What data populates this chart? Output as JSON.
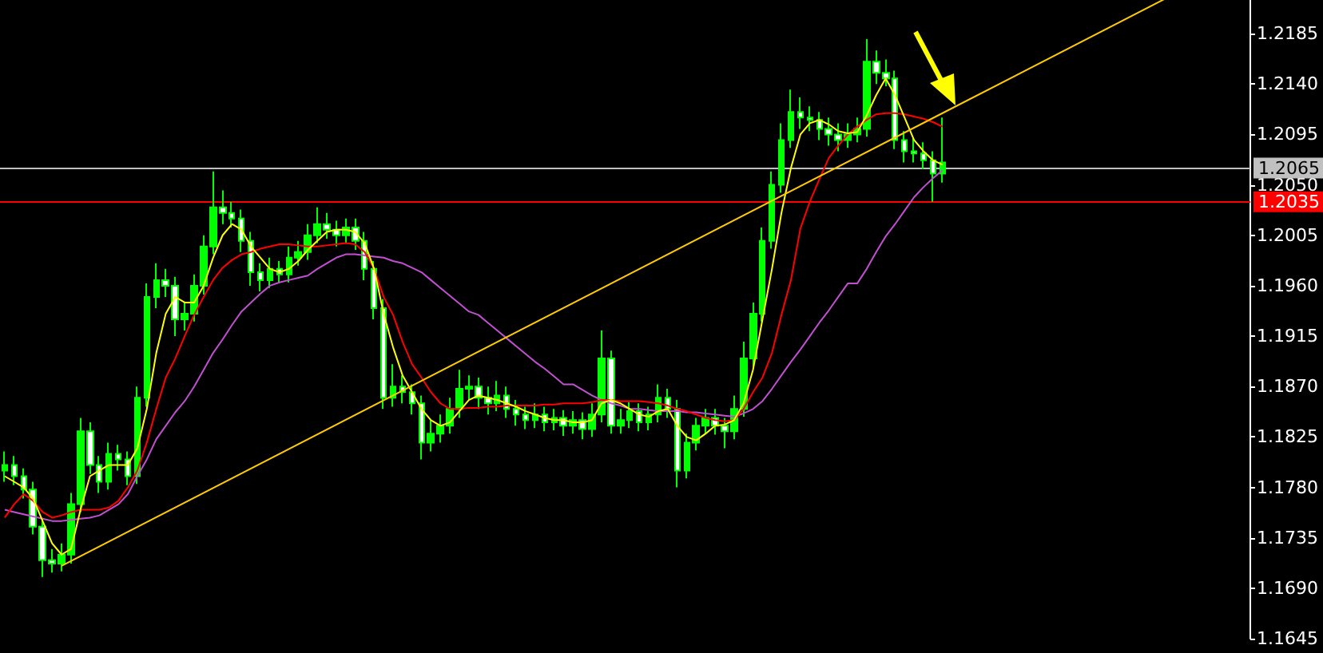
{
  "chart_data": {
    "type": "candlestick",
    "color": "#00ff00",
    "categories": [
      null,
      null,
      null,
      null,
      null,
      null,
      null,
      null,
      null,
      null,
      null,
      null,
      null,
      null,
      null,
      null,
      null,
      null,
      null,
      null,
      null,
      null,
      null,
      null,
      null,
      null,
      null,
      null,
      null,
      null,
      null,
      null,
      null,
      null,
      null,
      null,
      null,
      null,
      null,
      null,
      null,
      null,
      null,
      null,
      null,
      null,
      null,
      null,
      null,
      null,
      null,
      null,
      null,
      null,
      null,
      null,
      null,
      null,
      null,
      null,
      null,
      null,
      null,
      null,
      null,
      null,
      null,
      null,
      null,
      null,
      null,
      null,
      null,
      null,
      null,
      null,
      null,
      null,
      null,
      null,
      null,
      null,
      null,
      null,
      null,
      null,
      null,
      null,
      null,
      null,
      null,
      null,
      null,
      null,
      null,
      null,
      null,
      null,
      null,
      null
    ],
    "ohlc": [
      [
        1.1795,
        1.1812,
        1.1785,
        1.18
      ],
      [
        1.18,
        1.1808,
        1.1782,
        1.179
      ],
      [
        1.179,
        1.1797,
        1.177,
        1.1778
      ],
      [
        1.1778,
        1.1785,
        1.1738,
        1.1745
      ],
      [
        1.1745,
        1.1752,
        1.17,
        1.1715
      ],
      [
        1.1715,
        1.1725,
        1.1704,
        1.1712
      ],
      [
        1.1712,
        1.173,
        1.1705,
        1.172
      ],
      [
        1.172,
        1.1775,
        1.1712,
        1.1765
      ],
      [
        1.1765,
        1.1842,
        1.1758,
        1.183
      ],
      [
        1.183,
        1.1838,
        1.1792,
        1.18
      ],
      [
        1.18,
        1.1808,
        1.1775,
        1.1785
      ],
      [
        1.1785,
        1.182,
        1.1778,
        1.181
      ],
      [
        1.181,
        1.1818,
        1.1795,
        1.1805
      ],
      [
        1.1805,
        1.1812,
        1.1782,
        1.179
      ],
      [
        1.179,
        1.187,
        1.1783,
        1.186
      ],
      [
        1.186,
        1.1962,
        1.1852,
        1.195
      ],
      [
        1.195,
        1.198,
        1.194,
        1.1965
      ],
      [
        1.1965,
        1.1975,
        1.195,
        1.196
      ],
      [
        1.196,
        1.1968,
        1.1915,
        1.193
      ],
      [
        1.193,
        1.1945,
        1.192,
        1.1935
      ],
      [
        1.1935,
        1.197,
        1.1928,
        1.196
      ],
      [
        1.196,
        1.2005,
        1.1952,
        1.1995
      ],
      [
        1.1995,
        1.2062,
        1.1988,
        1.203
      ],
      [
        1.203,
        1.2045,
        1.2015,
        1.2025
      ],
      [
        1.2025,
        1.2035,
        1.2012,
        1.202
      ],
      [
        1.202,
        1.2028,
        1.199,
        1.2
      ],
      [
        1.2,
        1.2008,
        1.196,
        1.1972
      ],
      [
        1.1972,
        1.198,
        1.1955,
        1.1965
      ],
      [
        1.1965,
        1.1985,
        1.1958,
        1.1975
      ],
      [
        1.1975,
        1.1982,
        1.1962,
        1.197
      ],
      [
        1.197,
        1.1995,
        1.1963,
        1.1985
      ],
      [
        1.1985,
        1.2,
        1.1978,
        1.199
      ],
      [
        1.199,
        1.2015,
        1.1983,
        1.2005
      ],
      [
        1.2005,
        1.203,
        1.1998,
        1.2015
      ],
      [
        1.2015,
        1.2025,
        1.2002,
        1.201
      ],
      [
        1.201,
        1.2018,
        1.1995,
        1.2005
      ],
      [
        1.2005,
        1.202,
        1.1998,
        1.2012
      ],
      [
        1.2012,
        1.202,
        1.1992,
        1.2
      ],
      [
        1.2,
        1.2008,
        1.1965,
        1.1975
      ],
      [
        1.1975,
        1.1982,
        1.193,
        1.194
      ],
      [
        1.194,
        1.1948,
        1.185,
        1.186
      ],
      [
        1.186,
        1.189,
        1.1852,
        1.187
      ],
      [
        1.187,
        1.188,
        1.1855,
        1.1865
      ],
      [
        1.1865,
        1.1872,
        1.1845,
        1.1855
      ],
      [
        1.1855,
        1.1862,
        1.1805,
        1.182
      ],
      [
        1.182,
        1.184,
        1.1812,
        1.1828
      ],
      [
        1.1828,
        1.1845,
        1.182,
        1.1835
      ],
      [
        1.1835,
        1.186,
        1.1828,
        1.185
      ],
      [
        1.185,
        1.1885,
        1.1842,
        1.1868
      ],
      [
        1.1868,
        1.188,
        1.1858,
        1.187
      ],
      [
        1.187,
        1.1878,
        1.185,
        1.186
      ],
      [
        1.186,
        1.187,
        1.1845,
        1.1855
      ],
      [
        1.1855,
        1.1875,
        1.1848,
        1.1862
      ],
      [
        1.1862,
        1.187,
        1.1842,
        1.185
      ],
      [
        1.185,
        1.1858,
        1.1835,
        1.1845
      ],
      [
        1.1845,
        1.1852,
        1.1832,
        1.184
      ],
      [
        1.184,
        1.1855,
        1.1833,
        1.1845
      ],
      [
        1.1845,
        1.1852,
        1.183,
        1.1838
      ],
      [
        1.1838,
        1.185,
        1.1831,
        1.1842
      ],
      [
        1.1842,
        1.1849,
        1.1826,
        1.1835
      ],
      [
        1.1835,
        1.1848,
        1.1828,
        1.184
      ],
      [
        1.184,
        1.1847,
        1.1823,
        1.1832
      ],
      [
        1.1832,
        1.1855,
        1.1825,
        1.1845
      ],
      [
        1.1845,
        1.192,
        1.1838,
        1.1895
      ],
      [
        1.1895,
        1.1902,
        1.1828,
        1.1835
      ],
      [
        1.1835,
        1.185,
        1.1828,
        1.184
      ],
      [
        1.184,
        1.1856,
        1.1833,
        1.1848
      ],
      [
        1.1848,
        1.1855,
        1.183,
        1.1838
      ],
      [
        1.1838,
        1.1852,
        1.1831,
        1.1845
      ],
      [
        1.1845,
        1.1872,
        1.1838,
        1.186
      ],
      [
        1.186,
        1.1868,
        1.1842,
        1.185
      ],
      [
        1.185,
        1.1858,
        1.178,
        1.1795
      ],
      [
        1.1795,
        1.1828,
        1.1788,
        1.182
      ],
      [
        1.182,
        1.1842,
        1.1813,
        1.1835
      ],
      [
        1.1835,
        1.185,
        1.1828,
        1.1842
      ],
      [
        1.1842,
        1.185,
        1.1827,
        1.1835
      ],
      [
        1.1835,
        1.1842,
        1.1815,
        1.183
      ],
      [
        1.183,
        1.1862,
        1.1823,
        1.185
      ],
      [
        1.185,
        1.191,
        1.1843,
        1.1895
      ],
      [
        1.1895,
        1.1945,
        1.1888,
        1.1935
      ],
      [
        1.1935,
        1.2012,
        1.1928,
        1.2
      ],
      [
        1.2,
        1.2062,
        1.1993,
        1.205
      ],
      [
        1.205,
        1.2105,
        1.2043,
        1.209
      ],
      [
        1.209,
        1.2135,
        1.2083,
        1.2115
      ],
      [
        1.2115,
        1.2128,
        1.21,
        1.211
      ],
      [
        1.211,
        1.212,
        1.2098,
        1.2108
      ],
      [
        1.2108,
        1.2115,
        1.209,
        1.21
      ],
      [
        1.21,
        1.211,
        1.2085,
        1.2095
      ],
      [
        1.2095,
        1.2105,
        1.208,
        1.209
      ],
      [
        1.209,
        1.2105,
        1.2083,
        1.2095
      ],
      [
        1.2095,
        1.211,
        1.2088,
        1.21
      ],
      [
        1.21,
        1.218,
        1.2093,
        1.216
      ],
      [
        1.216,
        1.217,
        1.214,
        1.215
      ],
      [
        1.215,
        1.2162,
        1.2138,
        1.2145
      ],
      [
        1.2145,
        1.2152,
        1.2082,
        1.209
      ],
      [
        1.209,
        1.2098,
        1.207,
        1.208
      ],
      [
        1.208,
        1.2092,
        1.207,
        1.2078
      ],
      [
        1.2078,
        1.2088,
        1.2064,
        1.2072
      ],
      [
        1.2072,
        1.208,
        1.2035,
        1.206
      ],
      [
        1.206,
        1.211,
        1.2052,
        1.207
      ]
    ],
    "series": [
      {
        "type": "line",
        "color": "#c050d0",
        "values": [
          1.176,
          1.1758,
          1.1756,
          1.1754,
          1.1752,
          1.175,
          1.175,
          1.1751,
          1.1752,
          1.1753,
          1.1755,
          1.176,
          1.1765,
          1.1774,
          1.179,
          1.1805,
          1.1823,
          1.1835,
          1.1847,
          1.1857,
          1.187,
          1.1885,
          1.19,
          1.1912,
          1.1925,
          1.1937,
          1.1945,
          1.1953,
          1.196,
          1.1963,
          1.1965,
          1.1967,
          1.1969,
          1.1975,
          1.198,
          1.1985,
          1.1988,
          1.1988,
          1.1987,
          1.1986,
          1.1985,
          1.1982,
          1.198,
          1.1976,
          1.1972,
          1.1965,
          1.1958,
          1.1951,
          1.1944,
          1.1937,
          1.1934,
          1.1927,
          1.192,
          1.1913,
          1.1906,
          1.1899,
          1.1892,
          1.1886,
          1.1879,
          1.1872,
          1.1872,
          1.1867,
          1.1862,
          1.1858,
          1.1855,
          1.1853,
          1.185,
          1.185,
          1.1849,
          1.1848,
          1.1848,
          1.1848,
          1.1847,
          1.1847,
          1.1846,
          1.1845,
          1.1844,
          1.1843,
          1.1846,
          1.185,
          1.1857,
          1.1868,
          1.188,
          1.1892,
          1.1903,
          1.1915,
          1.1927,
          1.1938,
          1.195,
          1.1962,
          1.1962,
          1.1975,
          1.199,
          1.2004,
          1.2015,
          1.2027,
          1.2039,
          1.2048,
          1.2056,
          1.2063
        ]
      },
      {
        "type": "line",
        "color": "#ff0000",
        "values": [
          1.1753,
          1.1765,
          1.1774,
          1.1768,
          1.1758,
          1.1753,
          1.1755,
          1.1758,
          1.176,
          1.176,
          1.176,
          1.1762,
          1.1768,
          1.178,
          1.1795,
          1.182,
          1.185,
          1.1878,
          1.1895,
          1.1915,
          1.1934,
          1.195,
          1.1965,
          1.1976,
          1.1983,
          1.1988,
          1.199,
          1.1993,
          1.1995,
          1.1997,
          1.1997,
          1.1996,
          1.1995,
          1.1995,
          1.1996,
          1.1997,
          1.1998,
          1.1997,
          1.199,
          1.1975,
          1.195,
          1.1934,
          1.191,
          1.189,
          1.1878,
          1.1865,
          1.1855,
          1.185,
          1.185,
          1.1851,
          1.1851,
          1.1852,
          1.1852,
          1.1853,
          1.1853,
          1.1853,
          1.1853,
          1.1854,
          1.1854,
          1.1855,
          1.1855,
          1.1855,
          1.1856,
          1.1858,
          1.1858,
          1.1857,
          1.1857,
          1.1857,
          1.1856,
          1.1855,
          1.1853,
          1.185,
          1.1848,
          1.1845,
          1.1842,
          1.184,
          1.1839,
          1.184,
          1.185,
          1.1865,
          1.1878,
          1.19,
          1.1934,
          1.1965,
          1.2011,
          1.2035,
          1.2055,
          1.2074,
          1.2085,
          1.2095,
          1.2102,
          1.2108,
          1.2113,
          1.2114,
          1.2114,
          1.2113,
          1.2111,
          1.2109,
          1.2106,
          1.2102
        ]
      },
      {
        "type": "line",
        "color": "#ffff00",
        "values": [
          1.179,
          1.1785,
          1.178,
          1.177,
          1.175,
          1.173,
          1.172,
          1.1725,
          1.176,
          1.179,
          1.1795,
          1.18,
          1.18,
          1.18,
          1.1815,
          1.185,
          1.19,
          1.1935,
          1.195,
          1.1945,
          1.1945,
          1.196,
          1.1985,
          1.2005,
          1.2015,
          1.201,
          1.1995,
          1.1985,
          1.1975,
          1.1972,
          1.1975,
          1.1982,
          1.1992,
          1.2,
          1.2008,
          1.201,
          1.201,
          1.2008,
          1.1998,
          1.1975,
          1.1935,
          1.1905,
          1.188,
          1.1865,
          1.185,
          1.184,
          1.1835,
          1.1838,
          1.1848,
          1.1858,
          1.1862,
          1.186,
          1.1858,
          1.1855,
          1.1852,
          1.1848,
          1.1845,
          1.1842,
          1.184,
          1.184,
          1.1838,
          1.1838,
          1.184,
          1.1855,
          1.1858,
          1.1855,
          1.185,
          1.1845,
          1.1843,
          1.1848,
          1.185,
          1.1835,
          1.1825,
          1.1822,
          1.1828,
          1.1835,
          1.1836,
          1.184,
          1.1855,
          1.1885,
          1.193,
          1.1975,
          1.2025,
          1.2065,
          1.2095,
          1.2105,
          1.2108,
          1.2104,
          1.2098,
          1.2096,
          1.2097,
          1.2112,
          1.213,
          1.2145,
          1.213,
          1.211,
          1.209,
          1.208,
          1.2072,
          1.2068
        ]
      },
      {
        "type": "line",
        "color": "#ffcc00",
        "values": [
          null,
          null,
          null,
          null,
          null,
          null,
          1.171,
          null,
          null,
          null,
          null,
          null,
          null,
          null,
          null,
          null,
          null,
          null,
          null,
          null,
          null,
          null,
          null,
          null,
          null,
          null,
          null,
          null,
          null,
          null,
          null,
          null,
          null,
          null,
          null,
          null,
          null,
          null,
          null,
          null,
          null,
          null,
          null,
          null,
          null,
          null,
          null,
          null,
          null,
          null,
          null,
          null,
          null,
          null,
          null,
          null,
          null,
          null,
          null,
          null,
          null,
          null,
          null,
          null,
          null,
          null,
          null,
          null,
          null,
          null,
          null,
          null,
          null,
          null,
          null,
          null,
          null,
          null,
          null,
          null,
          null,
          null,
          null,
          null,
          null,
          null,
          null,
          null,
          null,
          null,
          null,
          null,
          null,
          null,
          null,
          null,
          null,
          null,
          null,
          1.2114
        ]
      }
    ],
    "ref_lines": [
      {
        "axis": "y",
        "value": 1.2065,
        "label": "1.2065",
        "color": "#c0c0c0"
      },
      {
        "axis": "y",
        "value": 1.2035,
        "label": "1.2035",
        "color": "#ff0000"
      }
    ],
    "ylim": [
      1.1645,
      1.2215
    ],
    "yticks": [
      1.1645,
      {
        "value": 1.169,
        "label": "1.1690"
      },
      1.1735,
      {
        "value": 1.178,
        "label": "1.1780"
      },
      1.1825,
      {
        "value": 1.187,
        "label": "1.1870"
      },
      1.1915,
      {
        "value": 1.196,
        "label": "1.1960"
      },
      1.2005,
      {
        "value": 1.205,
        "label": "1.2050"
      },
      1.2095,
      {
        "value": 1.214,
        "label": "1.2140"
      },
      1.2185
    ],
    "tick_labels": "y",
    "grid": false
  }
}
